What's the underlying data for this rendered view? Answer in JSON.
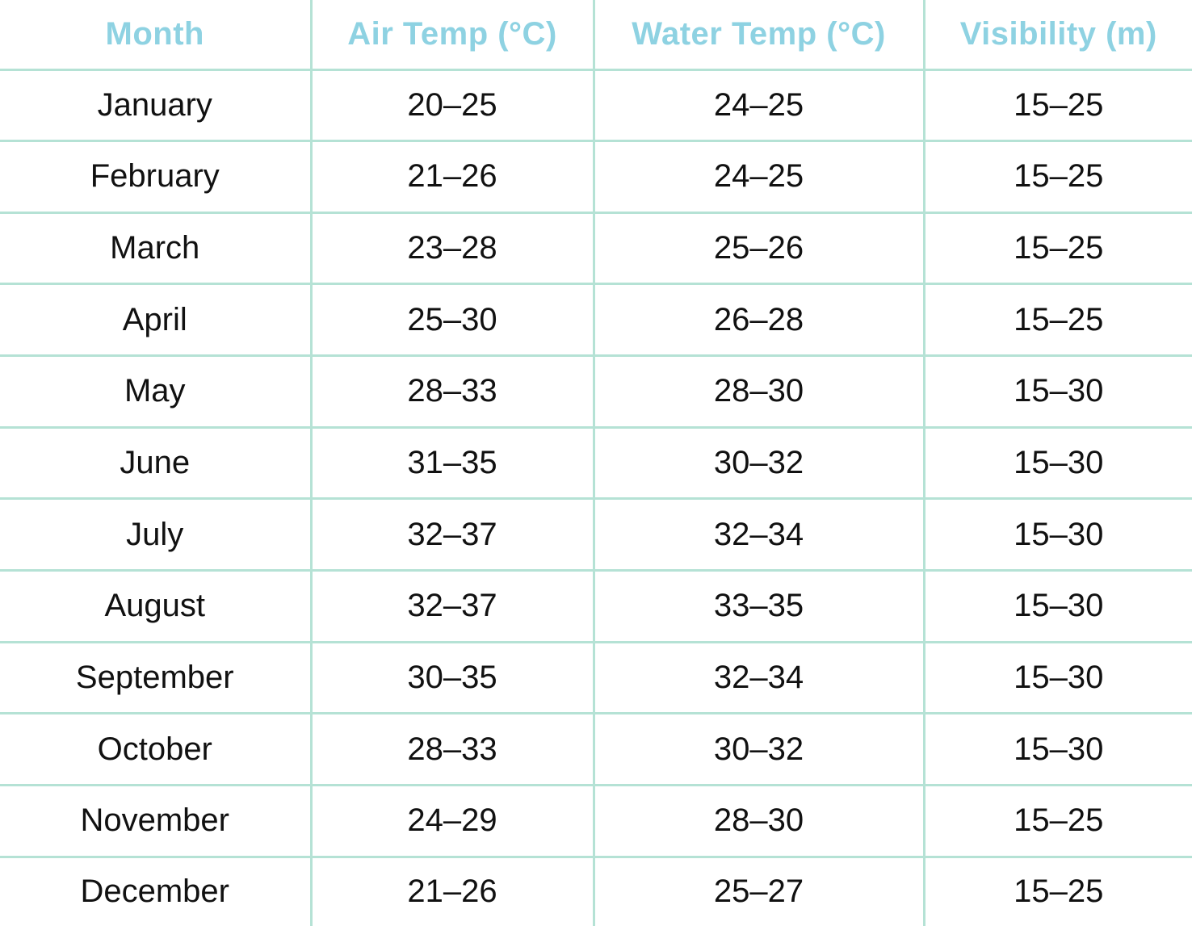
{
  "chart_data": {
    "type": "table",
    "columns": [
      "Month",
      "Air Temp (°C)",
      "Water Temp (°C)",
      "Visibility (m)"
    ],
    "rows": [
      [
        "January",
        "20–25",
        "24–25",
        "15–25"
      ],
      [
        "February",
        "21–26",
        "24–25",
        "15–25"
      ],
      [
        "March",
        "23–28",
        "25–26",
        "15–25"
      ],
      [
        "April",
        "25–30",
        "26–28",
        "15–25"
      ],
      [
        "May",
        "28–33",
        "28–30",
        "15–30"
      ],
      [
        "June",
        "31–35",
        "30–32",
        "15–30"
      ],
      [
        "July",
        "32–37",
        "32–34",
        "15–30"
      ],
      [
        "August",
        "32–37",
        "33–35",
        "15–30"
      ],
      [
        "September",
        "30–35",
        "32–34",
        "15–30"
      ],
      [
        "October",
        "28–33",
        "30–32",
        "15–30"
      ],
      [
        "November",
        "24–29",
        "28–30",
        "15–25"
      ],
      [
        "December",
        "21–26",
        "25–27",
        "15–25"
      ]
    ],
    "layout": {
      "grid": "internal-lines-only",
      "column_alignment": [
        "center",
        "center",
        "center",
        "center"
      ]
    }
  },
  "colors": {
    "header-text": "#8ed2e2",
    "grid-border": "#b5e2d5",
    "body-text": "#111111",
    "background": "#ffffff"
  }
}
